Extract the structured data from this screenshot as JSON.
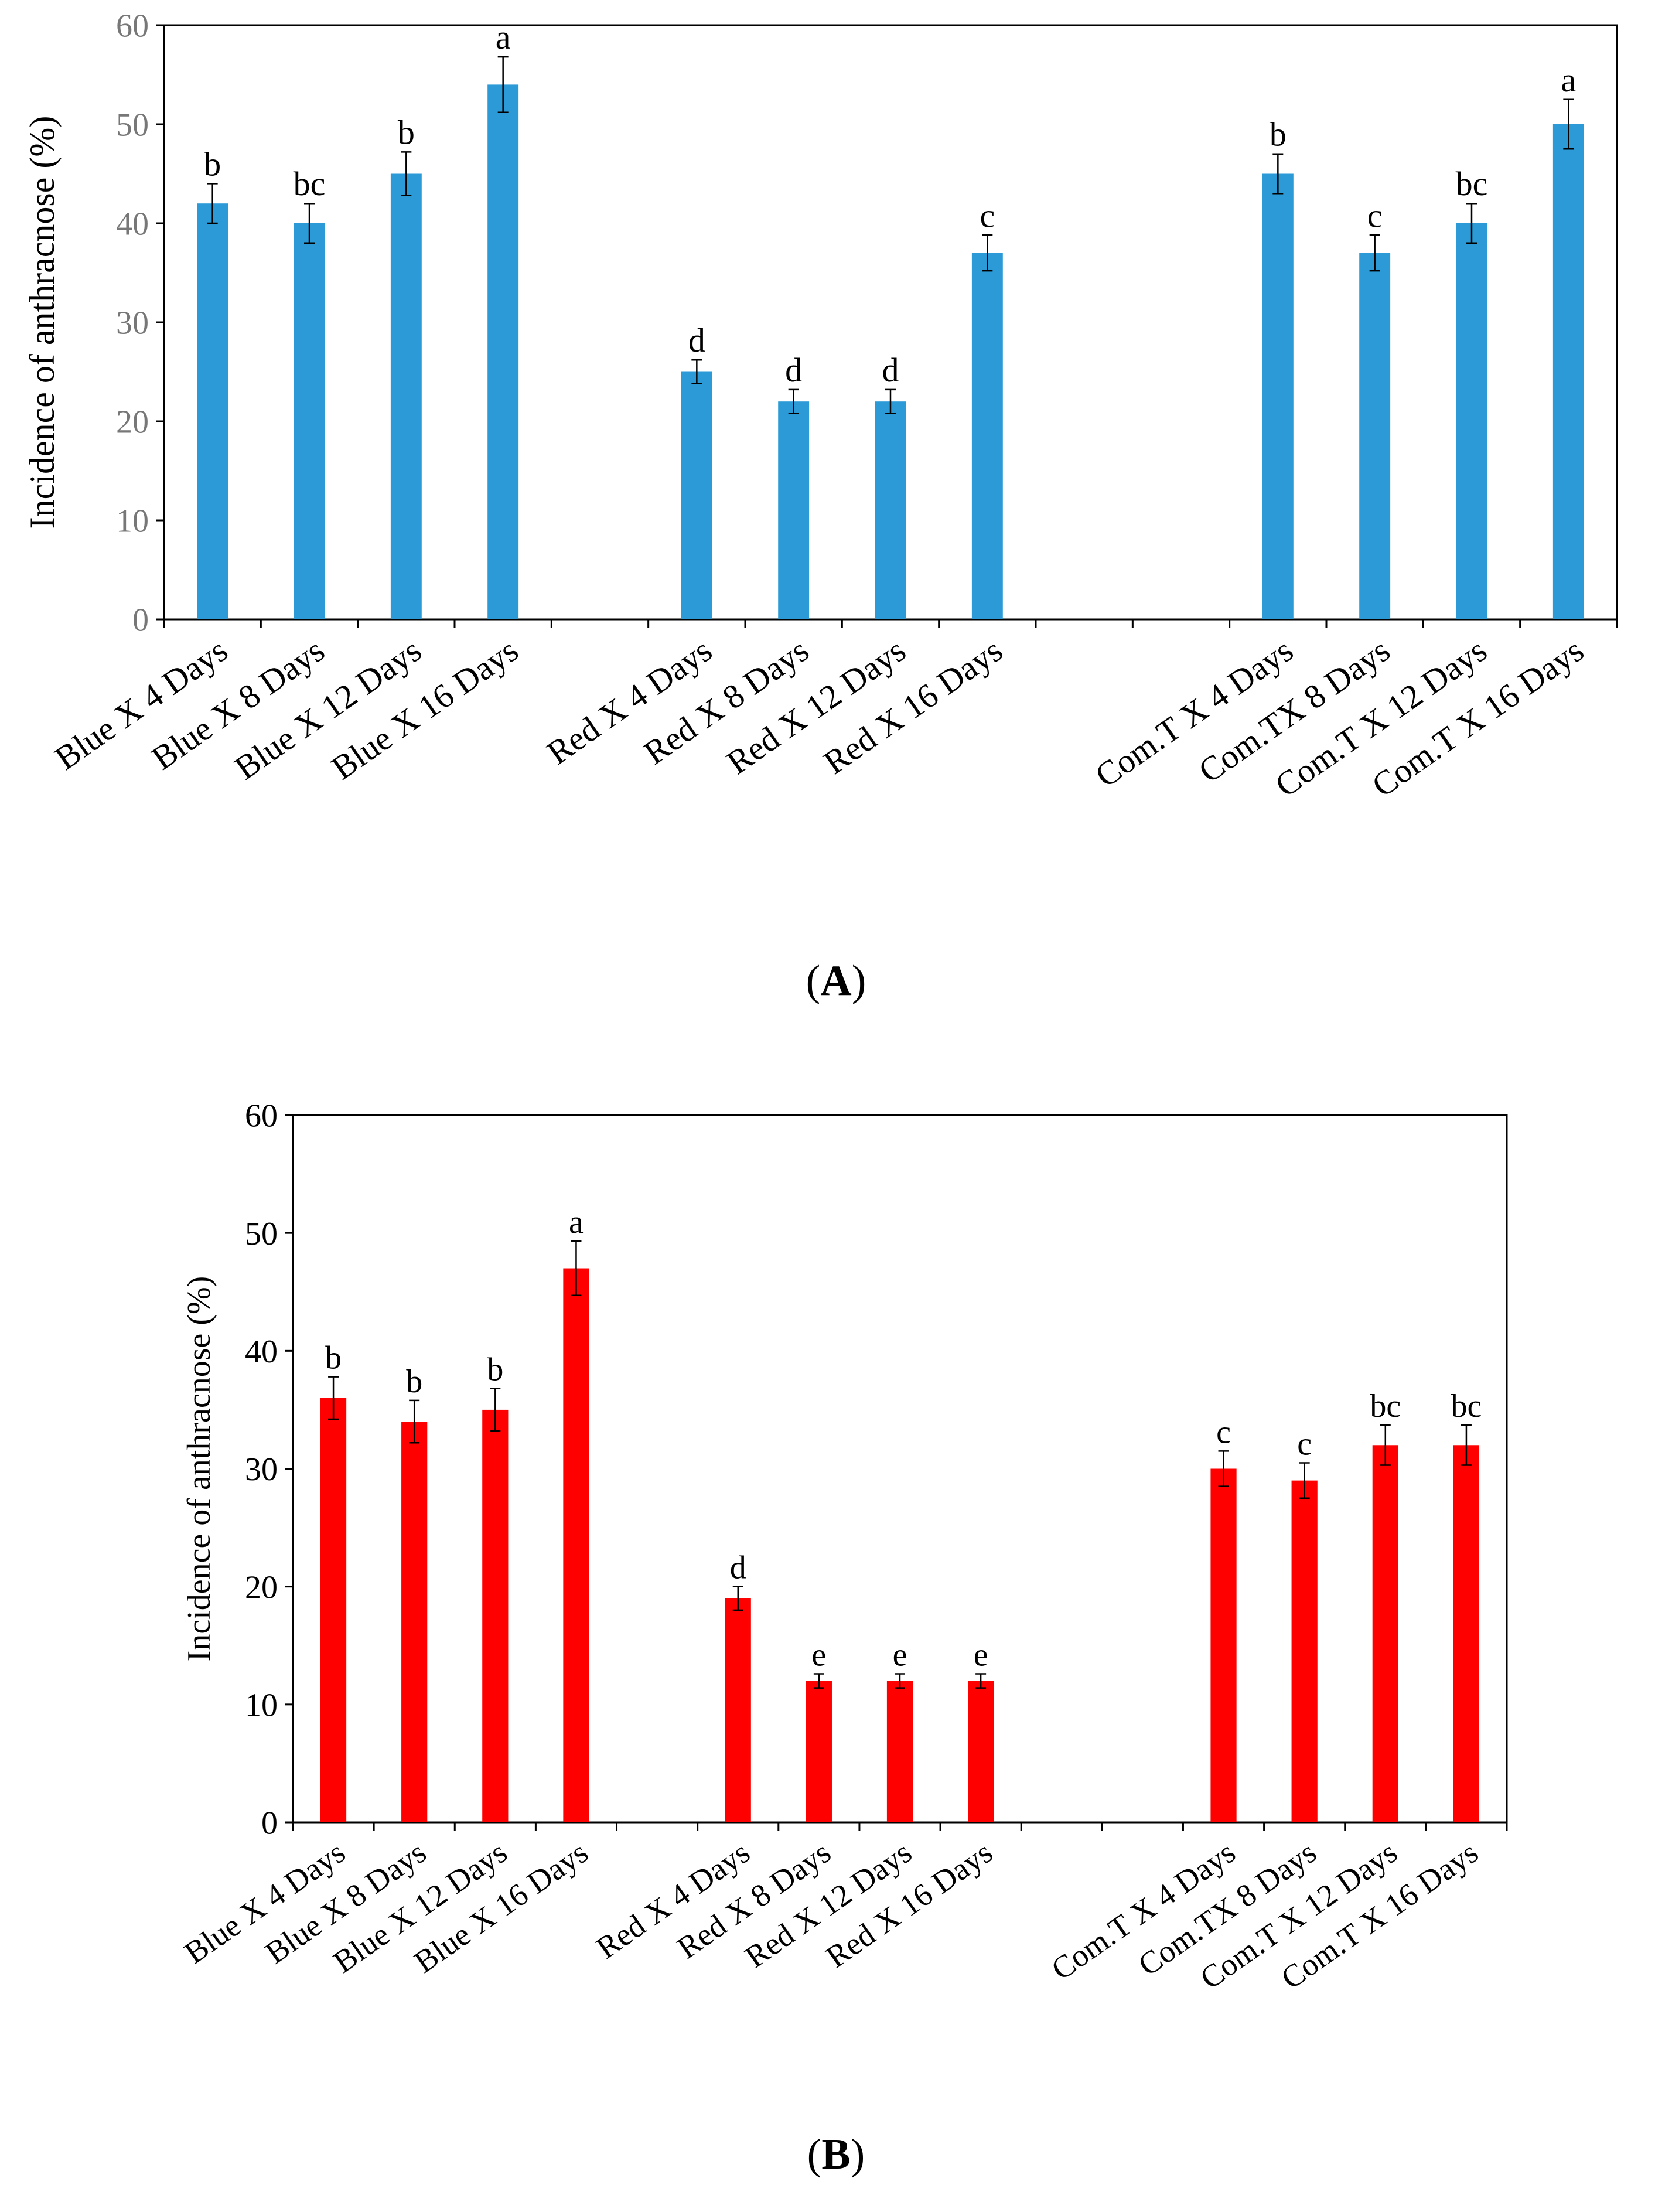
{
  "chart_data": [
    {
      "type": "bar",
      "panel_label": "A",
      "ylabel": "Incidence of anthracnose (%)",
      "xlabel": "",
      "ylim": [
        0,
        60
      ],
      "yticks": [
        0,
        10,
        20,
        30,
        40,
        50,
        60
      ],
      "bar_color": "#2b9ad6",
      "categories": [
        "Blue X 4 Days",
        "Blue X 8 Days",
        "Blue X 12 Days",
        "Blue X 16 Days",
        "",
        "Red X 4 Days",
        "Red X 8 Days",
        "Red X 12 Days",
        "Red X 16 Days",
        "",
        "",
        "Com.T X 4 Days",
        "Com.TX 8 Days",
        "Com.T X 12 Days",
        "Com.T  X 16 Days"
      ],
      "values": [
        42,
        40,
        45,
        54,
        null,
        25,
        22,
        22,
        37,
        null,
        null,
        45,
        37,
        40,
        50
      ],
      "errors": [
        2,
        2,
        2.2,
        2.8,
        null,
        1.2,
        1.2,
        1.2,
        1.8,
        null,
        null,
        2,
        1.8,
        2,
        2.5
      ],
      "annotations": [
        "b",
        "bc",
        "b",
        "a",
        "",
        "d",
        "d",
        "d",
        "c",
        "",
        "",
        "b",
        "c",
        "bc",
        "a"
      ]
    },
    {
      "type": "bar",
      "panel_label": "B",
      "ylabel": "Incidence of anthracnose (%)",
      "xlabel": "",
      "ylim": [
        0,
        60
      ],
      "yticks": [
        0,
        10,
        20,
        30,
        40,
        50,
        60
      ],
      "bar_color": "#ff0000",
      "categories": [
        "Blue X 4 Days",
        "Blue X 8 Days",
        "Blue X 12 Days",
        "Blue X 16 Days",
        "",
        "Red X 4 Days",
        "Red X 8 Days",
        "Red X 12 Days",
        "Red X 16 Days",
        "",
        "",
        "Com.T X 4 Days",
        "Com.TX 8 Days",
        "Com.T X 12 Days",
        "Com.T  X 16 Days"
      ],
      "values": [
        36,
        34,
        35,
        47,
        null,
        19,
        12,
        12,
        12,
        null,
        null,
        30,
        29,
        32,
        32
      ],
      "errors": [
        1.8,
        1.8,
        1.8,
        2.3,
        null,
        1,
        0.6,
        0.6,
        0.6,
        null,
        null,
        1.5,
        1.5,
        1.7,
        1.7
      ],
      "annotations": [
        "b",
        "b",
        "b",
        "a",
        "",
        "d",
        "e",
        "e",
        "e",
        "",
        "",
        "c",
        "c",
        "bc",
        "bc"
      ]
    }
  ],
  "captions": {
    "a": "A",
    "b": "B"
  }
}
